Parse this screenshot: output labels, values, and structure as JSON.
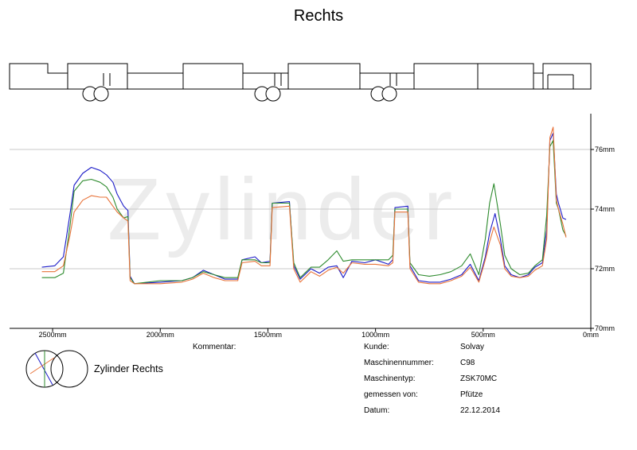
{
  "title": "Rechts",
  "watermark": "Zylinder",
  "comment_label": "Kommentar:",
  "legend_label": "Zylinder Rechts",
  "info": [
    {
      "label": "Kunde:",
      "value": "Solvay"
    },
    {
      "label": "Maschinennummer:",
      "value": "C98"
    },
    {
      "label": "Maschinentyp:",
      "value": "ZSK70MC"
    },
    {
      "label": "gemessen von:",
      "value": "Pfütze"
    },
    {
      "label": "Datum:",
      "value": "22.12.2014"
    }
  ],
  "colors": {
    "blue": "#1c1cc8",
    "green": "#2e8b2e",
    "orange": "#e8733a",
    "grid": "#c8c8c8"
  },
  "chart_data": {
    "type": "line",
    "title": "Rechts",
    "xlabel": "",
    "ylabel": "",
    "x_ticks": [
      "2500mm",
      "2000mm",
      "1500mm",
      "1000mm",
      "500mm",
      "0mm"
    ],
    "y_ticks": [
      "76mm",
      "74mm",
      "72mm",
      "70mm"
    ],
    "xlim": [
      2700,
      0
    ],
    "ylim": [
      70,
      77.2
    ],
    "x_reversed": true,
    "grid": "horizontal",
    "series": [
      {
        "color": "#1c1cc8",
        "points": [
          [
            2550,
            72.05
          ],
          [
            2490,
            72.1
          ],
          [
            2450,
            72.4
          ],
          [
            2420,
            73.8
          ],
          [
            2400,
            74.8
          ],
          [
            2360,
            75.2
          ],
          [
            2320,
            75.4
          ],
          [
            2280,
            75.3
          ],
          [
            2250,
            75.15
          ],
          [
            2220,
            74.9
          ],
          [
            2200,
            74.5
          ],
          [
            2170,
            74.1
          ],
          [
            2150,
            73.95
          ],
          [
            2140,
            71.75
          ],
          [
            2120,
            71.5
          ],
          [
            2000,
            71.55
          ],
          [
            1900,
            71.6
          ],
          [
            1850,
            71.7
          ],
          [
            1800,
            71.95
          ],
          [
            1750,
            71.8
          ],
          [
            1700,
            71.65
          ],
          [
            1640,
            71.65
          ],
          [
            1620,
            72.3
          ],
          [
            1560,
            72.4
          ],
          [
            1530,
            72.2
          ],
          [
            1490,
            72.25
          ],
          [
            1480,
            74.2
          ],
          [
            1400,
            74.25
          ],
          [
            1380,
            72.1
          ],
          [
            1350,
            71.65
          ],
          [
            1300,
            72.0
          ],
          [
            1260,
            71.85
          ],
          [
            1220,
            72.05
          ],
          [
            1180,
            72.1
          ],
          [
            1150,
            71.7
          ],
          [
            1110,
            72.25
          ],
          [
            1050,
            72.2
          ],
          [
            1000,
            72.3
          ],
          [
            940,
            72.15
          ],
          [
            920,
            72.3
          ],
          [
            910,
            74.05
          ],
          [
            850,
            74.1
          ],
          [
            840,
            72.1
          ],
          [
            800,
            71.6
          ],
          [
            750,
            71.55
          ],
          [
            700,
            71.55
          ],
          [
            650,
            71.65
          ],
          [
            600,
            71.8
          ],
          [
            560,
            72.15
          ],
          [
            520,
            71.6
          ],
          [
            490,
            72.4
          ],
          [
            470,
            73.2
          ],
          [
            445,
            73.85
          ],
          [
            420,
            73.0
          ],
          [
            400,
            72.1
          ],
          [
            370,
            71.8
          ],
          [
            330,
            71.7
          ],
          [
            290,
            71.8
          ],
          [
            260,
            72.05
          ],
          [
            225,
            72.2
          ],
          [
            205,
            73.3
          ],
          [
            190,
            76.3
          ],
          [
            175,
            76.55
          ],
          [
            160,
            74.5
          ],
          [
            150,
            74.2
          ],
          [
            130,
            73.7
          ],
          [
            115,
            73.65
          ]
        ]
      },
      {
        "color": "#2e8b2e",
        "points": [
          [
            2550,
            71.7
          ],
          [
            2490,
            71.7
          ],
          [
            2450,
            71.85
          ],
          [
            2420,
            73.4
          ],
          [
            2400,
            74.6
          ],
          [
            2360,
            74.95
          ],
          [
            2320,
            75.0
          ],
          [
            2280,
            74.9
          ],
          [
            2250,
            74.75
          ],
          [
            2220,
            74.4
          ],
          [
            2200,
            74.0
          ],
          [
            2170,
            73.7
          ],
          [
            2150,
            73.75
          ],
          [
            2140,
            71.7
          ],
          [
            2120,
            71.5
          ],
          [
            2000,
            71.6
          ],
          [
            1900,
            71.6
          ],
          [
            1850,
            71.7
          ],
          [
            1800,
            71.9
          ],
          [
            1750,
            71.8
          ],
          [
            1700,
            71.7
          ],
          [
            1640,
            71.7
          ],
          [
            1620,
            72.3
          ],
          [
            1560,
            72.3
          ],
          [
            1530,
            72.2
          ],
          [
            1490,
            72.2
          ],
          [
            1480,
            74.2
          ],
          [
            1400,
            74.2
          ],
          [
            1380,
            72.2
          ],
          [
            1350,
            71.7
          ],
          [
            1300,
            72.05
          ],
          [
            1260,
            72.05
          ],
          [
            1220,
            72.3
          ],
          [
            1180,
            72.6
          ],
          [
            1150,
            72.25
          ],
          [
            1110,
            72.3
          ],
          [
            1050,
            72.3
          ],
          [
            1000,
            72.3
          ],
          [
            940,
            72.3
          ],
          [
            920,
            72.45
          ],
          [
            910,
            74.0
          ],
          [
            850,
            74.0
          ],
          [
            840,
            72.2
          ],
          [
            800,
            71.8
          ],
          [
            750,
            71.75
          ],
          [
            700,
            71.8
          ],
          [
            650,
            71.9
          ],
          [
            600,
            72.1
          ],
          [
            560,
            72.5
          ],
          [
            520,
            71.8
          ],
          [
            490,
            73.0
          ],
          [
            470,
            74.2
          ],
          [
            450,
            74.85
          ],
          [
            420,
            73.5
          ],
          [
            400,
            72.45
          ],
          [
            370,
            72.0
          ],
          [
            330,
            71.8
          ],
          [
            290,
            71.85
          ],
          [
            260,
            72.1
          ],
          [
            225,
            72.3
          ],
          [
            205,
            73.8
          ],
          [
            190,
            76.1
          ],
          [
            175,
            76.3
          ],
          [
            160,
            74.2
          ],
          [
            150,
            74.0
          ],
          [
            130,
            73.3
          ],
          [
            115,
            73.1
          ]
        ]
      },
      {
        "color": "#e8733a",
        "points": [
          [
            2550,
            71.9
          ],
          [
            2490,
            71.9
          ],
          [
            2450,
            72.1
          ],
          [
            2420,
            73.1
          ],
          [
            2400,
            73.9
          ],
          [
            2360,
            74.3
          ],
          [
            2320,
            74.45
          ],
          [
            2280,
            74.4
          ],
          [
            2250,
            74.4
          ],
          [
            2220,
            74.1
          ],
          [
            2200,
            73.9
          ],
          [
            2170,
            73.7
          ],
          [
            2150,
            73.6
          ],
          [
            2140,
            71.6
          ],
          [
            2120,
            71.5
          ],
          [
            2000,
            71.5
          ],
          [
            1900,
            71.55
          ],
          [
            1850,
            71.65
          ],
          [
            1800,
            71.85
          ],
          [
            1750,
            71.7
          ],
          [
            1700,
            71.6
          ],
          [
            1640,
            71.6
          ],
          [
            1620,
            72.2
          ],
          [
            1560,
            72.25
          ],
          [
            1530,
            72.1
          ],
          [
            1490,
            72.1
          ],
          [
            1480,
            74.05
          ],
          [
            1400,
            74.1
          ],
          [
            1380,
            72.0
          ],
          [
            1350,
            71.55
          ],
          [
            1300,
            71.9
          ],
          [
            1260,
            71.75
          ],
          [
            1220,
            71.95
          ],
          [
            1180,
            72.05
          ],
          [
            1150,
            71.85
          ],
          [
            1110,
            72.2
          ],
          [
            1050,
            72.15
          ],
          [
            1000,
            72.15
          ],
          [
            940,
            72.1
          ],
          [
            920,
            72.2
          ],
          [
            910,
            73.9
          ],
          [
            850,
            73.9
          ],
          [
            840,
            72.0
          ],
          [
            800,
            71.55
          ],
          [
            750,
            71.5
          ],
          [
            700,
            71.5
          ],
          [
            650,
            71.6
          ],
          [
            600,
            71.75
          ],
          [
            560,
            72.05
          ],
          [
            520,
            71.55
          ],
          [
            490,
            72.3
          ],
          [
            470,
            72.9
          ],
          [
            450,
            73.4
          ],
          [
            420,
            72.8
          ],
          [
            400,
            72.0
          ],
          [
            370,
            71.75
          ],
          [
            330,
            71.7
          ],
          [
            290,
            71.75
          ],
          [
            260,
            71.95
          ],
          [
            225,
            72.1
          ],
          [
            205,
            73.0
          ],
          [
            190,
            76.4
          ],
          [
            175,
            76.75
          ],
          [
            160,
            74.3
          ],
          [
            150,
            74.0
          ],
          [
            130,
            73.5
          ],
          [
            115,
            73.05
          ]
        ]
      }
    ]
  }
}
